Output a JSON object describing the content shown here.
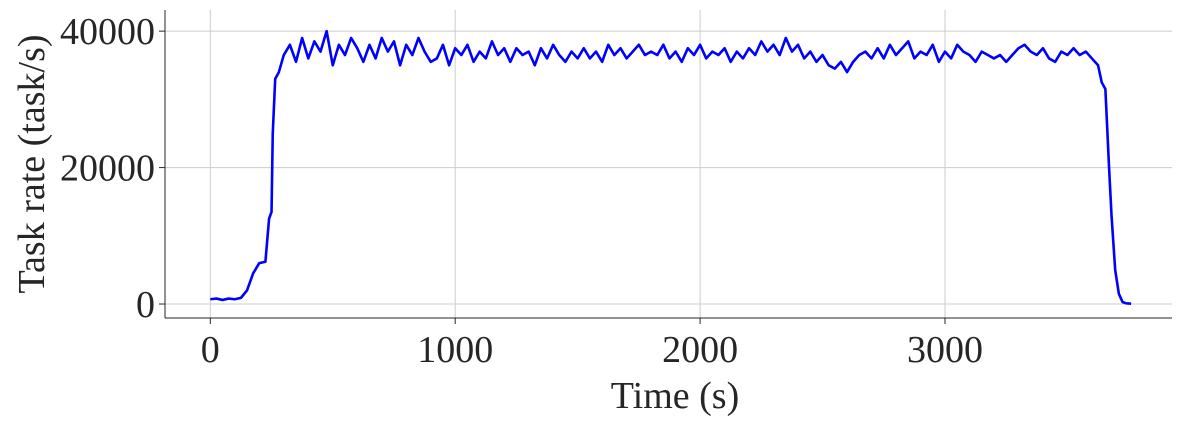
{
  "chart_data": {
    "type": "line",
    "x_label": "Time (s)",
    "y_label": "Task rate (task/s)",
    "xlim": [
      -185,
      3927
    ],
    "ylim": [
      -2050,
      43100
    ],
    "xticks": [
      0,
      1000,
      2000,
      3000
    ],
    "yticks": [
      0,
      20000,
      40000
    ],
    "grid": true,
    "x": [
      0,
      25,
      50,
      75,
      100,
      125,
      150,
      175,
      200,
      225,
      240,
      250,
      255,
      265,
      280,
      300,
      325,
      350,
      375,
      400,
      425,
      450,
      475,
      500,
      525,
      550,
      575,
      600,
      625,
      650,
      675,
      700,
      725,
      750,
      775,
      800,
      825,
      850,
      875,
      900,
      925,
      950,
      975,
      1000,
      1025,
      1050,
      1075,
      1100,
      1125,
      1150,
      1175,
      1200,
      1225,
      1250,
      1275,
      1300,
      1325,
      1350,
      1375,
      1400,
      1425,
      1450,
      1475,
      1500,
      1525,
      1550,
      1575,
      1600,
      1625,
      1650,
      1675,
      1700,
      1725,
      1750,
      1775,
      1800,
      1825,
      1850,
      1875,
      1900,
      1925,
      1950,
      1975,
      2000,
      2025,
      2050,
      2075,
      2100,
      2125,
      2150,
      2175,
      2200,
      2225,
      2250,
      2275,
      2300,
      2325,
      2350,
      2375,
      2400,
      2425,
      2450,
      2475,
      2500,
      2525,
      2550,
      2575,
      2600,
      2625,
      2650,
      2675,
      2700,
      2725,
      2750,
      2775,
      2800,
      2825,
      2850,
      2875,
      2900,
      2925,
      2950,
      2975,
      3000,
      3025,
      3050,
      3075,
      3100,
      3125,
      3150,
      3175,
      3200,
      3225,
      3250,
      3275,
      3300,
      3325,
      3350,
      3375,
      3400,
      3425,
      3450,
      3475,
      3500,
      3525,
      3550,
      3575,
      3600,
      3625,
      3640,
      3655,
      3670,
      3680,
      3695,
      3710,
      3725,
      3740,
      3760
    ],
    "series": [
      {
        "name": "Task rate",
        "color": "#0000ff",
        "values": [
          700,
          800,
          600,
          800,
          700,
          900,
          2000,
          4500,
          6000,
          6200,
          12500,
          13500,
          25000,
          33000,
          34000,
          36500,
          38000,
          35500,
          39000,
          36000,
          38500,
          37000,
          40000,
          35000,
          38000,
          36500,
          39000,
          37500,
          35500,
          38000,
          36000,
          39000,
          37000,
          38500,
          35000,
          38000,
          36500,
          39000,
          37000,
          35500,
          36000,
          38000,
          35000,
          37500,
          36500,
          38000,
          35500,
          37000,
          36000,
          38500,
          36500,
          37500,
          35500,
          37500,
          36500,
          37000,
          35000,
          37500,
          36000,
          38000,
          36500,
          35500,
          37000,
          36000,
          37500,
          36000,
          37000,
          35500,
          38000,
          36500,
          37500,
          36000,
          37000,
          38000,
          36500,
          37000,
          36500,
          38000,
          36000,
          37000,
          35500,
          37500,
          36500,
          38000,
          36000,
          37000,
          36500,
          37500,
          35500,
          37000,
          36000,
          37500,
          36500,
          38500,
          37000,
          38000,
          36500,
          39000,
          37000,
          38000,
          36000,
          37000,
          35500,
          36500,
          35000,
          34500,
          35500,
          34000,
          35500,
          36500,
          37000,
          36000,
          37500,
          36000,
          38000,
          36500,
          37500,
          38500,
          36000,
          37000,
          36500,
          38000,
          35500,
          37000,
          36000,
          38000,
          37000,
          36500,
          35500,
          37000,
          36500,
          36000,
          36500,
          35500,
          36500,
          37500,
          38000,
          37000,
          36500,
          37500,
          36000,
          35500,
          37000,
          36500,
          37500,
          36500,
          37000,
          36000,
          35000,
          32500,
          31500,
          20000,
          13000,
          5000,
          1500,
          300,
          100,
          50
        ]
      }
    ]
  }
}
